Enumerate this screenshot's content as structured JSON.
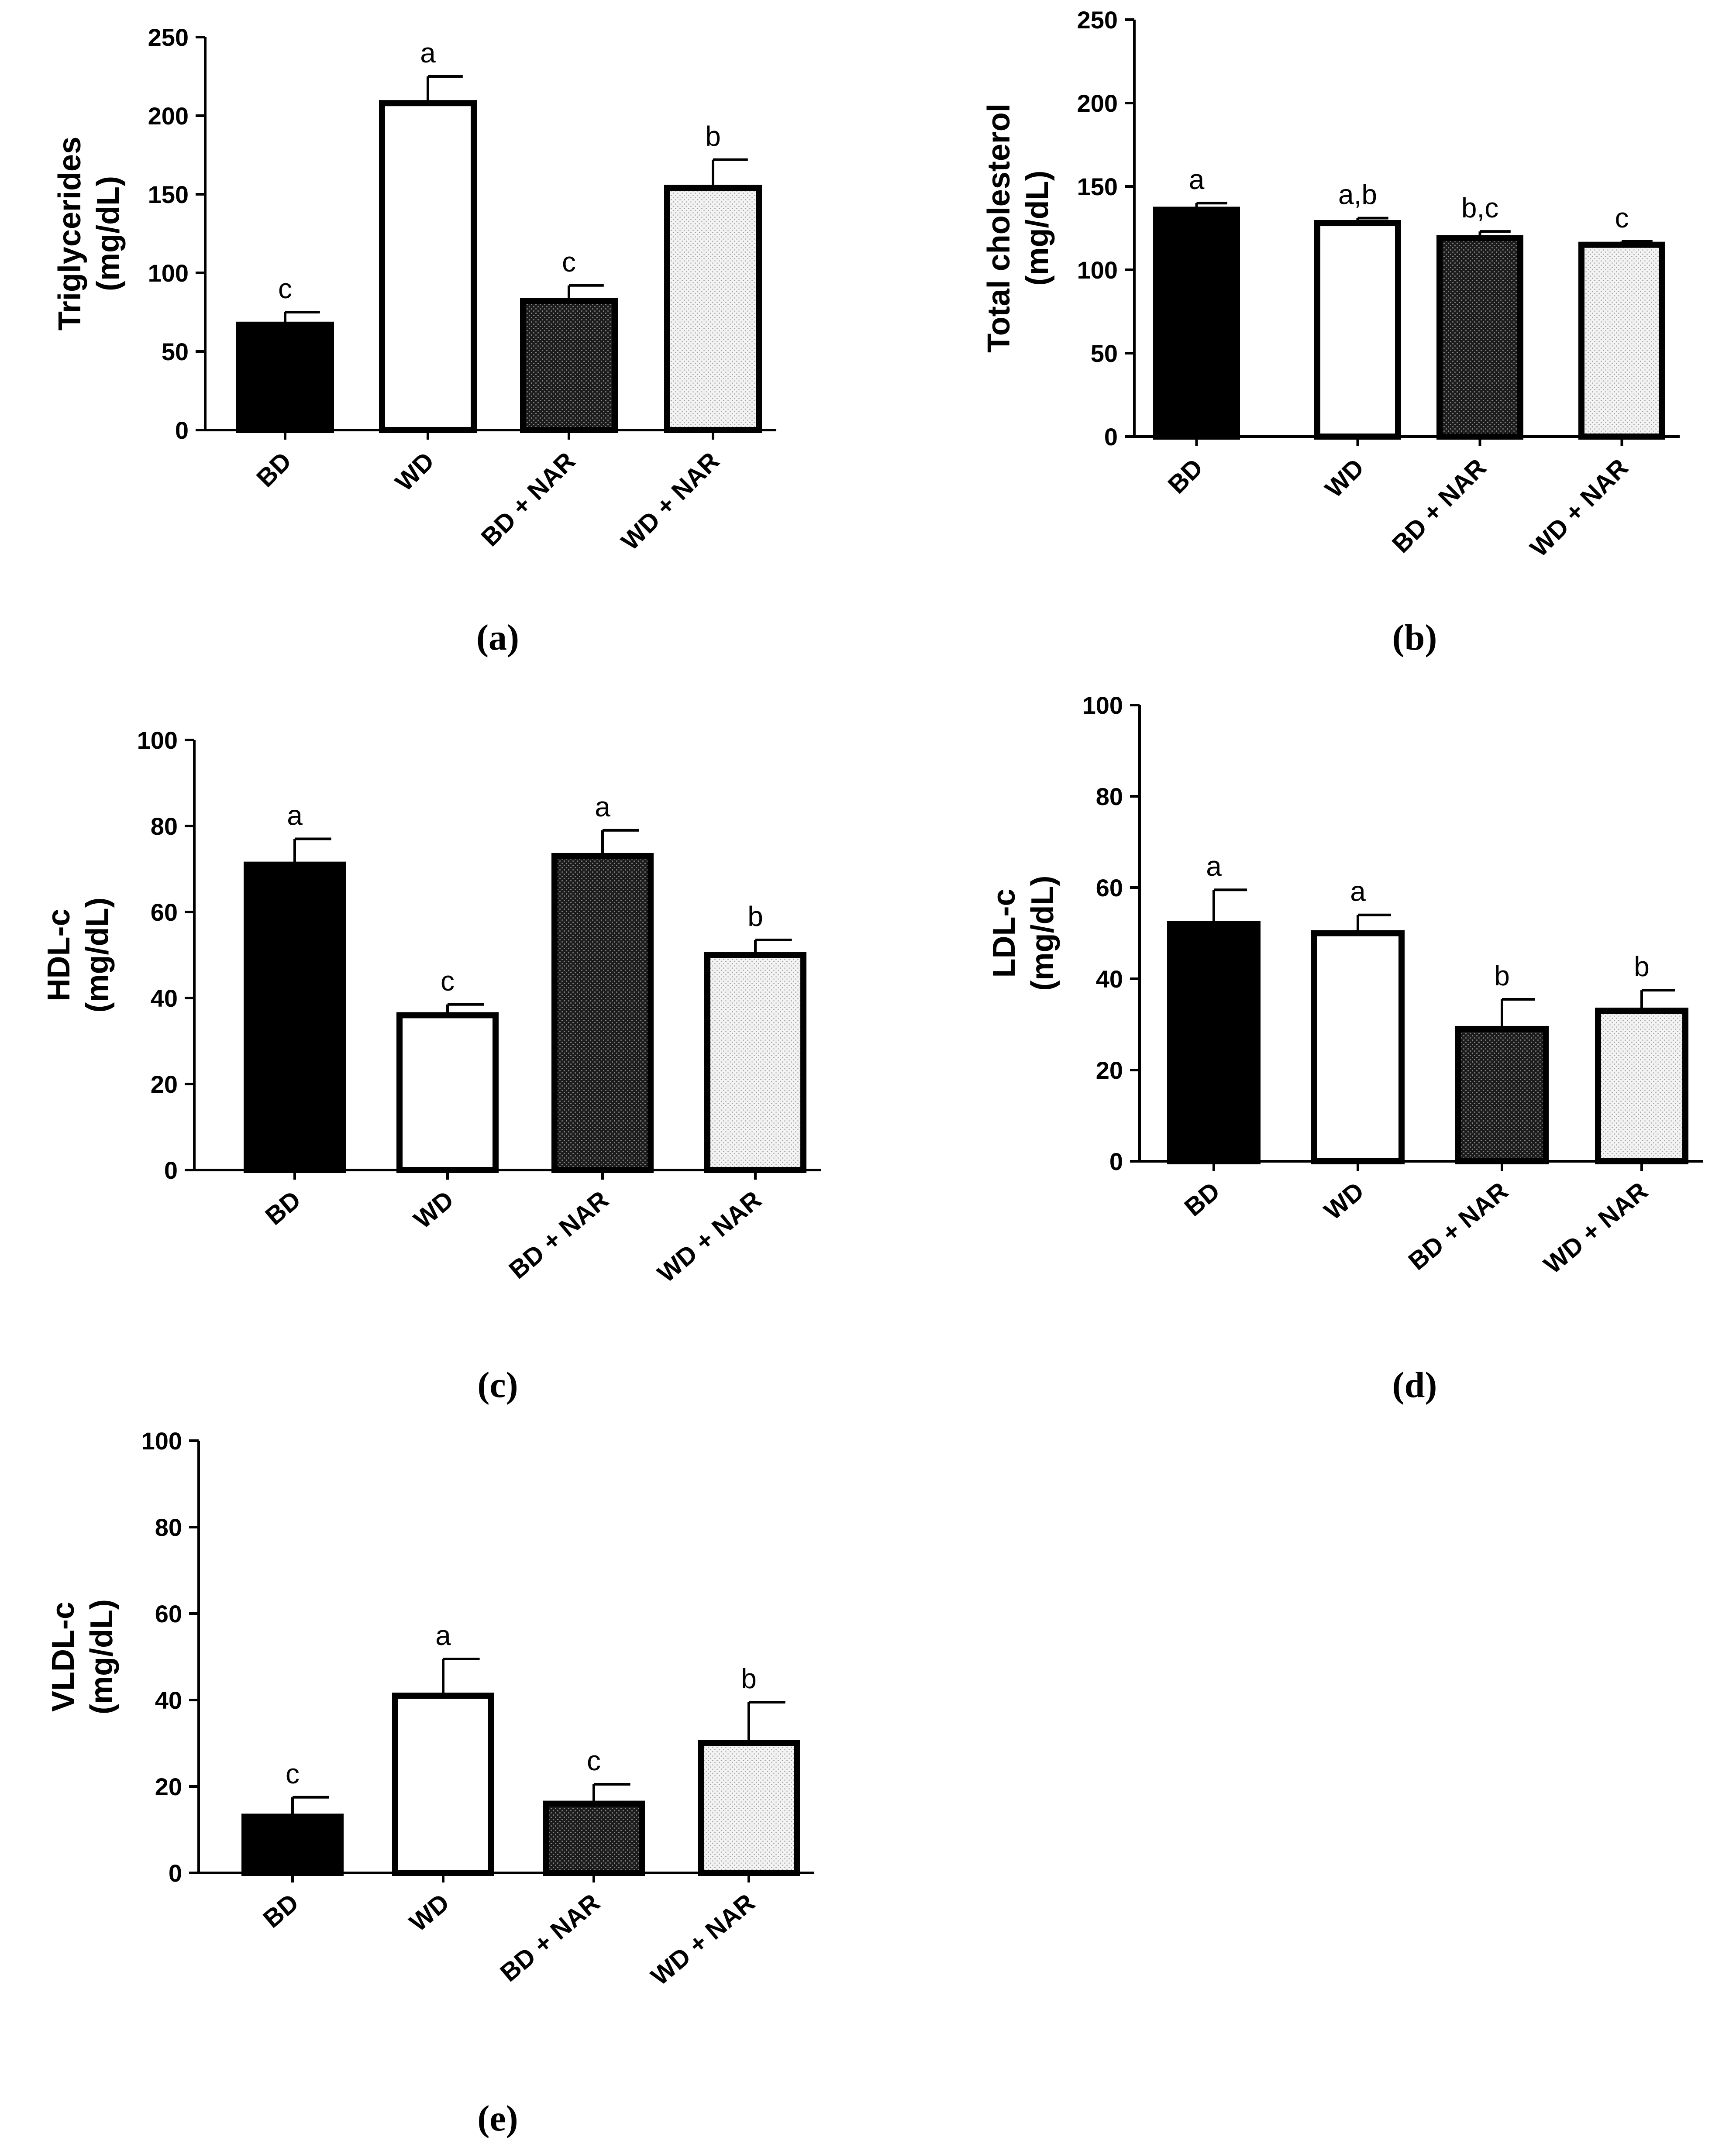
{
  "figure": {
    "patterns": {
      "BD": "solid-black",
      "WD": "white",
      "BD + NAR": "dense-dots",
      "WD + NAR": "light-dots"
    }
  },
  "chart_data": [
    {
      "id": "a",
      "type": "bar",
      "panel_label": "(a)",
      "categories": [
        "BD",
        "WD",
        "BD + NAR",
        "WD + NAR"
      ],
      "values": [
        67,
        208,
        82,
        154
      ],
      "errors": [
        8,
        17,
        10,
        18
      ],
      "letters": [
        "c",
        "a",
        "c",
        "b"
      ],
      "ylabel_lines": [
        "Triglycerides",
        "(mg/dL)"
      ],
      "ylim": [
        0,
        250
      ],
      "yticks": [
        0,
        50,
        100,
        150,
        200,
        250
      ]
    },
    {
      "id": "b",
      "type": "bar",
      "panel_label": "(b)",
      "categories": [
        "BD",
        "WD",
        "BD + NAR",
        "WD + NAR"
      ],
      "values": [
        136,
        128,
        119,
        115
      ],
      "errors": [
        4,
        3,
        4,
        2
      ],
      "letters": [
        "a",
        "a,b",
        "b,c",
        "c"
      ],
      "ylabel_lines": [
        "Total cholesterol",
        "(mg/dL)"
      ],
      "ylim": [
        0,
        250
      ],
      "yticks": [
        0,
        50,
        100,
        150,
        200,
        250
      ]
    },
    {
      "id": "c",
      "type": "bar",
      "panel_label": "(c)",
      "categories": [
        "BD",
        "WD",
        "BD + NAR",
        "WD + NAR"
      ],
      "values": [
        71,
        36,
        73,
        50
      ],
      "errors": [
        6,
        2.5,
        6,
        3.5
      ],
      "letters": [
        "a",
        "c",
        "a",
        "b"
      ],
      "ylabel_lines": [
        "HDL-c",
        "(mg/dL)"
      ],
      "ylim": [
        0,
        100
      ],
      "yticks": [
        0,
        20,
        40,
        60,
        80,
        100
      ]
    },
    {
      "id": "d",
      "type": "bar",
      "panel_label": "(d)",
      "categories": [
        "BD",
        "WD",
        "BD + NAR",
        "WD + NAR"
      ],
      "values": [
        52,
        50,
        29,
        33
      ],
      "errors": [
        7.5,
        4,
        6.5,
        4.5
      ],
      "letters": [
        "a",
        "a",
        "b",
        "b"
      ],
      "ylabel_lines": [
        "LDL-c",
        "(mg/dL)"
      ],
      "ylim": [
        0,
        100
      ],
      "yticks": [
        0,
        20,
        40,
        60,
        80,
        100
      ]
    },
    {
      "id": "e",
      "type": "bar",
      "panel_label": "(e)",
      "categories": [
        "BD",
        "WD",
        "BD + NAR",
        "WD + NAR"
      ],
      "values": [
        13,
        41,
        16,
        30
      ],
      "errors": [
        4.5,
        8.5,
        4.5,
        9.5
      ],
      "letters": [
        "c",
        "a",
        "c",
        "b"
      ],
      "ylabel_lines": [
        "VLDL-c",
        "(mg/dL)"
      ],
      "ylim": [
        0,
        100
      ],
      "yticks": [
        0,
        20,
        40,
        60,
        80,
        100
      ]
    }
  ]
}
